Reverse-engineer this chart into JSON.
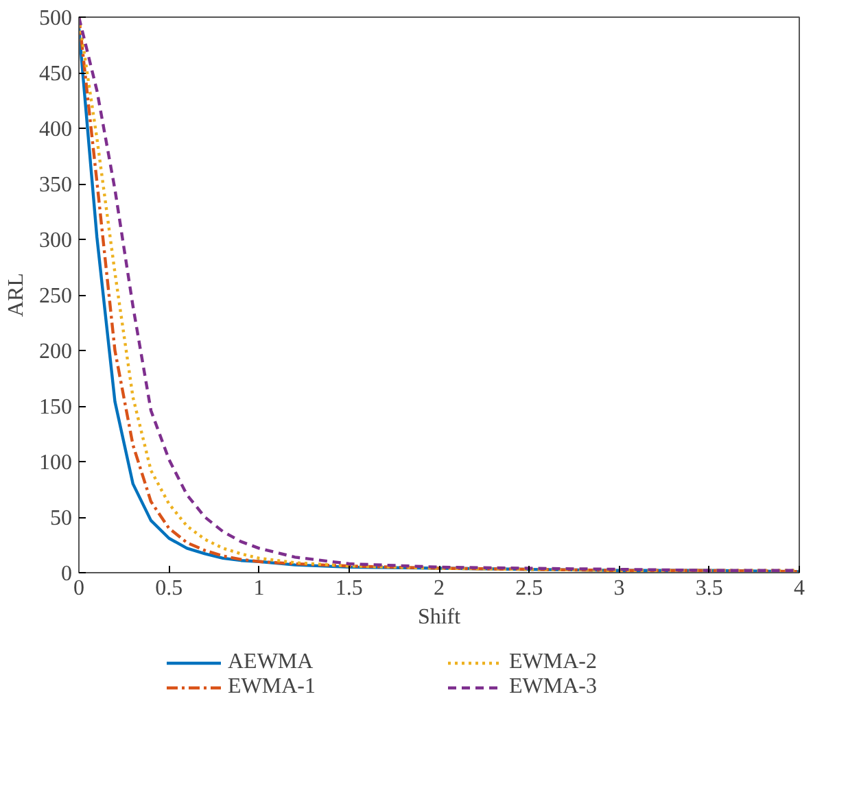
{
  "chart_data": {
    "type": "line",
    "xlabel": "Shift",
    "ylabel": "ARL",
    "xlim": [
      0,
      4
    ],
    "ylim": [
      0,
      500
    ],
    "xticks": [
      0,
      0.5,
      1,
      1.5,
      2,
      2.5,
      3,
      3.5,
      4
    ],
    "yticks": [
      0,
      50,
      100,
      150,
      200,
      250,
      300,
      350,
      400,
      450,
      500
    ],
    "grid": false,
    "legend": "bottom",
    "marker": "none",
    "x": [
      0,
      0.1,
      0.2,
      0.3,
      0.4,
      0.5,
      0.6,
      0.7,
      0.8,
      0.9,
      1.0,
      1.2,
      1.5,
      2,
      2.5,
      3,
      3.5,
      4
    ],
    "series": [
      {
        "name": "AEWMA",
        "color": "#0072bd",
        "line_style": "solid",
        "values": [
          490,
          302,
          154,
          80,
          47,
          31,
          22,
          17,
          13,
          11,
          10,
          7,
          5,
          4,
          3,
          2,
          2,
          1
        ]
      },
      {
        "name": "EWMA-1",
        "color": "#d95319",
        "line_style": "dashdot",
        "values": [
          500,
          352,
          200,
          115,
          64,
          40,
          27,
          20,
          15,
          12,
          10,
          8,
          6,
          4,
          3,
          2,
          2,
          1
        ]
      },
      {
        "name": "EWMA-2",
        "color": "#edb120",
        "line_style": "dotted",
        "values": [
          500,
          391,
          270,
          158,
          92,
          62,
          42,
          30,
          22,
          17,
          13,
          9,
          6,
          4,
          3,
          2,
          2,
          2
        ]
      },
      {
        "name": "EWMA-3",
        "color": "#7e2f8e",
        "line_style": "dashed",
        "values": [
          500,
          434,
          345,
          240,
          146,
          102,
          70,
          50,
          37,
          28,
          22,
          14,
          8,
          5,
          4,
          3,
          2,
          2
        ]
      }
    ]
  }
}
